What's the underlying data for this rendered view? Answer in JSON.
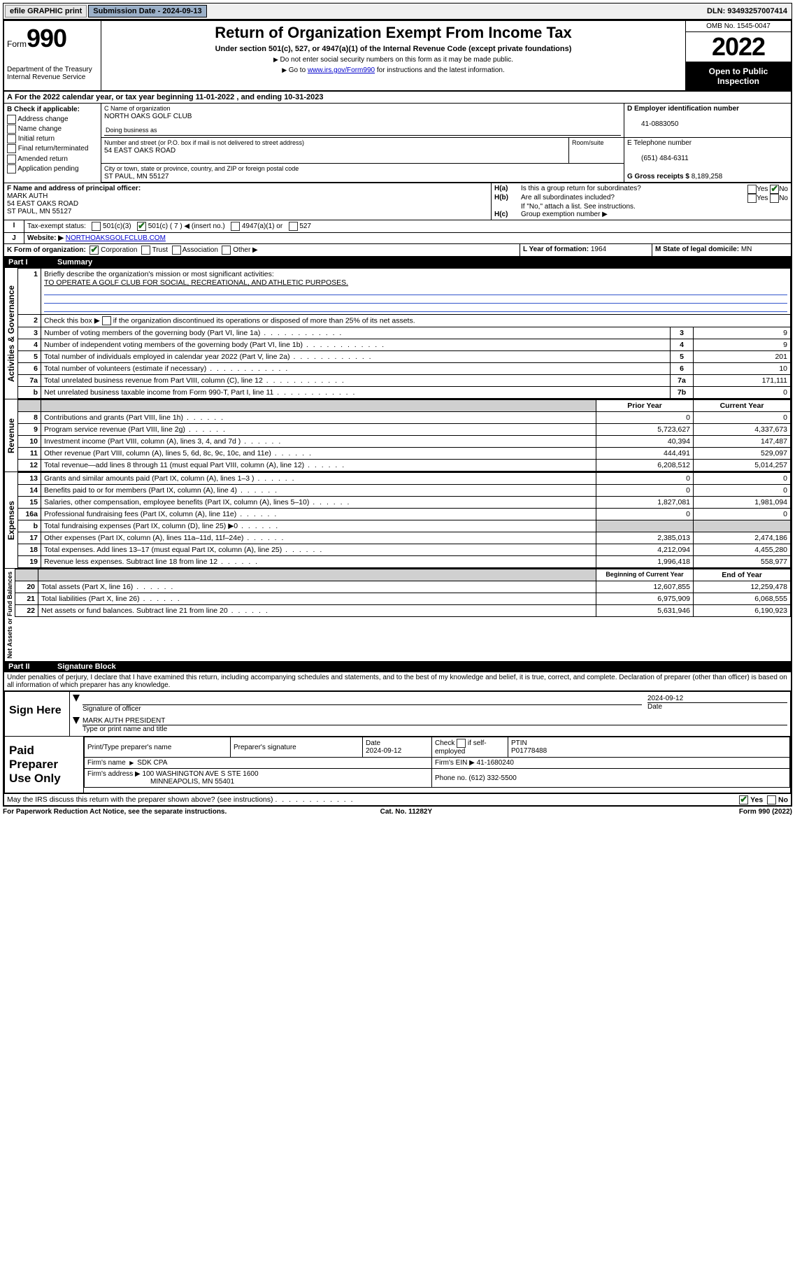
{
  "topbar": {
    "efile": "efile GRAPHIC print",
    "sub_label": "Submission Date - 2024-09-13",
    "dln": "DLN: 93493257007414"
  },
  "header": {
    "form_word": "Form",
    "form_num": "990",
    "dept": "Department of the Treasury Internal Revenue Service",
    "title": "Return of Organization Exempt From Income Tax",
    "sub1": "Under section 501(c), 527, or 4947(a)(1) of the Internal Revenue Code (except private foundations)",
    "sub2a": "Do not enter social security numbers on this form as it may be made public.",
    "sub2b_pre": "Go to ",
    "sub2b_link": "www.irs.gov/Form990",
    "sub2b_post": " for instructions and the latest information.",
    "omb": "OMB No. 1545-0047",
    "year": "2022",
    "openpub": "Open to Public Inspection"
  },
  "A": {
    "text_pre": "For the 2022 calendar year, or tax year beginning ",
    "begin": "11-01-2022",
    "mid": " , and ending ",
    "end": "10-31-2023"
  },
  "B": {
    "label": "B Check if applicable:",
    "items": [
      "Address change",
      "Name change",
      "Initial return",
      "Final return/terminated",
      "Amended return",
      "Application pending"
    ]
  },
  "C": {
    "name_lbl": "C Name of organization",
    "name": "NORTH OAKS GOLF CLUB",
    "dba_lbl": "Doing business as",
    "street_lbl": "Number and street (or P.O. box if mail is not delivered to street address)",
    "room_lbl": "Room/suite",
    "street": "54 EAST OAKS ROAD",
    "city_lbl": "City or town, state or province, country, and ZIP or foreign postal code",
    "city": "ST PAUL, MN  55127"
  },
  "D": {
    "label": "D Employer identification number",
    "val": "41-0883050"
  },
  "E": {
    "label": "E Telephone number",
    "val": "(651) 484-6311"
  },
  "G": {
    "label": "G Gross receipts $",
    "val": "8,189,258"
  },
  "F": {
    "label": "F  Name and address of principal officer:",
    "name": "MARK AUTH",
    "addr1": "54 EAST OAKS ROAD",
    "addr2": "ST PAUL, MN  55127"
  },
  "H": {
    "a": "Is this a group return for subordinates?",
    "b": "Are all subordinates included?",
    "b_note": "If \"No,\" attach a list. See instructions.",
    "c": "Group exemption number ▶",
    "yes": "Yes",
    "no": "No"
  },
  "I": {
    "label": "Tax-exempt status:",
    "o1": "501(c)(3)",
    "o2": "501(c) ( 7 ) ◀ (insert no.)",
    "o3": "4947(a)(1) or",
    "o4": "527"
  },
  "J": {
    "label": "Website: ▶",
    "val": "NORTHOAKSGOLFCLUB.COM"
  },
  "K": {
    "label": "K Form of organization:",
    "o1": "Corporation",
    "o2": "Trust",
    "o3": "Association",
    "o4": "Other ▶"
  },
  "L": {
    "label": "L Year of formation:",
    "val": "1964"
  },
  "M": {
    "label": "M State of legal domicile:",
    "val": "MN"
  },
  "part1": {
    "num": "Part I",
    "title": "Summary"
  },
  "summary": {
    "q1": "Briefly describe the organization's mission or most significant activities:",
    "q1v": "TO OPERATE A GOLF CLUB FOR SOCIAL, RECREATIONAL, AND ATHLETIC PURPOSES.",
    "q2": "Check this box ▶",
    "q2b": "if the organization discontinued its operations or disposed of more than 25% of its net assets.",
    "rows_gov": [
      {
        "n": "3",
        "t": "Number of voting members of the governing body (Part VI, line 1a)",
        "b": "3",
        "v": "9"
      },
      {
        "n": "4",
        "t": "Number of independent voting members of the governing body (Part VI, line 1b)",
        "b": "4",
        "v": "9"
      },
      {
        "n": "5",
        "t": "Total number of individuals employed in calendar year 2022 (Part V, line 2a)",
        "b": "5",
        "v": "201"
      },
      {
        "n": "6",
        "t": "Total number of volunteers (estimate if necessary)",
        "b": "6",
        "v": "10"
      },
      {
        "n": "7a",
        "t": "Total unrelated business revenue from Part VIII, column (C), line 12",
        "b": "7a",
        "v": "171,111"
      },
      {
        "n": "b",
        "t": "Net unrelated business taxable income from Form 990-T, Part I, line 11",
        "b": "7b",
        "v": "0"
      }
    ],
    "col_prior": "Prior Year",
    "col_curr": "Current Year",
    "rows_rev": [
      {
        "n": "8",
        "t": "Contributions and grants (Part VIII, line 1h)",
        "p": "0",
        "c": "0"
      },
      {
        "n": "9",
        "t": "Program service revenue (Part VIII, line 2g)",
        "p": "5,723,627",
        "c": "4,337,673"
      },
      {
        "n": "10",
        "t": "Investment income (Part VIII, column (A), lines 3, 4, and 7d )",
        "p": "40,394",
        "c": "147,487"
      },
      {
        "n": "11",
        "t": "Other revenue (Part VIII, column (A), lines 5, 6d, 8c, 9c, 10c, and 11e)",
        "p": "444,491",
        "c": "529,097"
      },
      {
        "n": "12",
        "t": "Total revenue—add lines 8 through 11 (must equal Part VIII, column (A), line 12)",
        "p": "6,208,512",
        "c": "5,014,257"
      }
    ],
    "rows_exp": [
      {
        "n": "13",
        "t": "Grants and similar amounts paid (Part IX, column (A), lines 1–3 )",
        "p": "0",
        "c": "0"
      },
      {
        "n": "14",
        "t": "Benefits paid to or for members (Part IX, column (A), line 4)",
        "p": "0",
        "c": "0"
      },
      {
        "n": "15",
        "t": "Salaries, other compensation, employee benefits (Part IX, column (A), lines 5–10)",
        "p": "1,827,081",
        "c": "1,981,094"
      },
      {
        "n": "16a",
        "t": "Professional fundraising fees (Part IX, column (A), line 11e)",
        "p": "0",
        "c": "0"
      },
      {
        "n": "b",
        "t": "Total fundraising expenses (Part IX, column (D), line 25) ▶0",
        "p": "",
        "c": "",
        "shadeP": true,
        "shadeC": true
      },
      {
        "n": "17",
        "t": "Other expenses (Part IX, column (A), lines 11a–11d, 11f–24e)",
        "p": "2,385,013",
        "c": "2,474,186"
      },
      {
        "n": "18",
        "t": "Total expenses. Add lines 13–17 (must equal Part IX, column (A), line 25)",
        "p": "4,212,094",
        "c": "4,455,280"
      },
      {
        "n": "19",
        "t": "Revenue less expenses. Subtract line 18 from line 12",
        "p": "1,996,418",
        "c": "558,977"
      }
    ],
    "col_beg": "Beginning of Current Year",
    "col_end": "End of Year",
    "rows_net": [
      {
        "n": "20",
        "t": "Total assets (Part X, line 16)",
        "p": "12,607,855",
        "c": "12,259,478"
      },
      {
        "n": "21",
        "t": "Total liabilities (Part X, line 26)",
        "p": "6,975,909",
        "c": "6,068,555"
      },
      {
        "n": "22",
        "t": "Net assets or fund balances. Subtract line 21 from line 20",
        "p": "5,631,946",
        "c": "6,190,923"
      }
    ],
    "vlabels": {
      "gov": "Activities & Governance",
      "rev": "Revenue",
      "exp": "Expenses",
      "net": "Net Assets or Fund Balances"
    }
  },
  "part2": {
    "num": "Part II",
    "title": "Signature Block"
  },
  "sig": {
    "decl": "Under penalties of perjury, I declare that I have examined this return, including accompanying schedules and statements, and to the best of my knowledge and belief, it is true, correct, and complete. Declaration of preparer (other than officer) is based on all information of which preparer has any knowledge.",
    "sign_here": "Sign Here",
    "sig_of": "Signature of officer",
    "date": "Date",
    "datev": "2024-09-12",
    "name": "MARK AUTH  PRESIDENT",
    "name_lbl": "Type or print name and title",
    "paid": "Paid Preparer Use Only",
    "pt_name_lbl": "Print/Type preparer's name",
    "pt_sig_lbl": "Preparer's signature",
    "pt_date_lbl": "Date",
    "pt_date": "2024-09-12",
    "pt_check": "Check",
    "pt_if": "if self-employed",
    "ptin_lbl": "PTIN",
    "ptin": "P01778488",
    "firm_name_lbl": "Firm's name",
    "firm_name": "SDK CPA",
    "firm_ein_lbl": "Firm's EIN ▶",
    "firm_ein": "41-1680240",
    "firm_addr_lbl": "Firm's address ▶",
    "firm_addr1": "100 WASHINGTON AVE S STE 1600",
    "firm_addr2": "MINNEAPOLIS, MN  55401",
    "phone_lbl": "Phone no.",
    "phone": "(612) 332-5500",
    "discuss": "May the IRS discuss this return with the preparer shown above? (see instructions)"
  },
  "foot": {
    "l": "For Paperwork Reduction Act Notice, see the separate instructions.",
    "m": "Cat. No. 11282Y",
    "r": "Form 990 (2022)"
  }
}
